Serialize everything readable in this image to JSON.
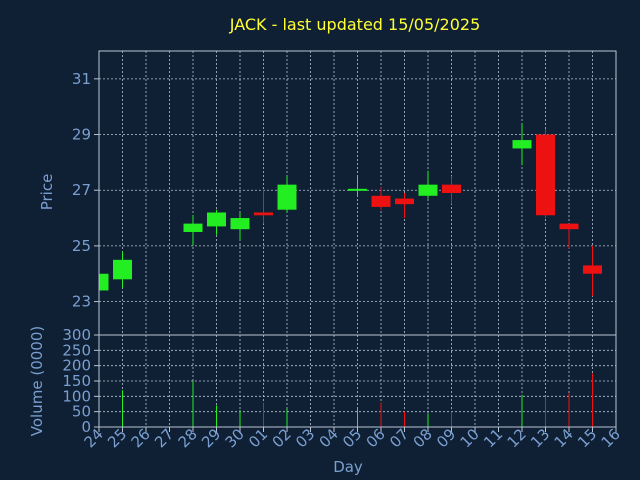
{
  "chart_data": {
    "type": "candlestick",
    "title": "JACK - last updated 15/05/2025",
    "xlabel": "Day",
    "ylabel": "Price",
    "volume_label": "Volume (0000)",
    "x_ticks": [
      "24",
      "25",
      "26",
      "27",
      "28",
      "29",
      "30",
      "01",
      "02",
      "03",
      "04",
      "05",
      "06",
      "07",
      "08",
      "09",
      "10",
      "11",
      "12",
      "13",
      "14",
      "15",
      "16"
    ],
    "price_ticks": [
      23,
      25,
      27,
      29,
      31
    ],
    "price_range": [
      21.8,
      32.0
    ],
    "volume_ticks": [
      0,
      50,
      100,
      150,
      200,
      250,
      300
    ],
    "volume_range": [
      0,
      300
    ],
    "grid": true,
    "colors": {
      "background": "#0f2035",
      "up": "#22ee22",
      "down": "#ee1111",
      "title": "#ffff33",
      "axis_text": "#7a9fd0",
      "grid": "#b8c4d4",
      "frame": "#b8c4d4"
    },
    "candles": [
      {
        "day": "24",
        "open": 23.4,
        "high": 24.0,
        "low": 23.4,
        "close": 24.0,
        "volume": 0
      },
      {
        "day": "25",
        "open": 23.8,
        "high": 24.8,
        "low": 23.5,
        "close": 24.5,
        "volume": 120
      },
      {
        "day": "28",
        "open": 25.5,
        "high": 26.1,
        "low": 25.0,
        "close": 25.8,
        "volume": 150
      },
      {
        "day": "29",
        "open": 25.7,
        "high": 26.3,
        "low": 25.4,
        "close": 26.2,
        "volume": 70
      },
      {
        "day": "30",
        "open": 25.6,
        "high": 26.2,
        "low": 25.2,
        "close": 26.0,
        "volume": 55
      },
      {
        "day": "01",
        "open": 26.2,
        "high": 27.0,
        "low": 25.8,
        "close": 26.1,
        "volume": 80
      },
      {
        "day": "02",
        "open": 26.3,
        "high": 27.5,
        "low": 26.2,
        "close": 27.2,
        "volume": 60
      },
      {
        "day": "05",
        "open": 27.0,
        "high": 27.5,
        "low": 26.8,
        "close": 27.05,
        "volume": 65
      },
      {
        "day": "06",
        "open": 26.8,
        "high": 27.1,
        "low": 26.3,
        "close": 26.4,
        "volume": 80
      },
      {
        "day": "07",
        "open": 26.7,
        "high": 26.9,
        "low": 26.0,
        "close": 26.5,
        "volume": 50
      },
      {
        "day": "08",
        "open": 26.8,
        "high": 27.7,
        "low": 26.7,
        "close": 27.2,
        "volume": 45
      },
      {
        "day": "09",
        "open": 27.2,
        "high": 27.5,
        "low": 26.5,
        "close": 26.9,
        "volume": 50
      },
      {
        "day": "12",
        "open": 28.5,
        "high": 29.4,
        "low": 27.9,
        "close": 28.8,
        "volume": 105
      },
      {
        "day": "13",
        "open": 29.0,
        "high": 29.2,
        "low": 26.0,
        "close": 26.1,
        "volume": 100
      },
      {
        "day": "14",
        "open": 25.8,
        "high": 25.8,
        "low": 24.9,
        "close": 25.6,
        "volume": 110
      },
      {
        "day": "15",
        "open": 24.3,
        "high": 25.0,
        "low": 23.2,
        "close": 24.0,
        "volume": 175
      }
    ]
  }
}
